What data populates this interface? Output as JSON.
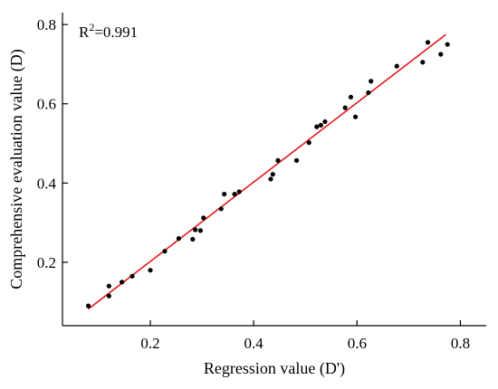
{
  "chart_data": {
    "type": "scatter",
    "title": "",
    "xlabel": "Regression value (D')",
    "ylabel": "Comprehensive  evaluation value (D)",
    "xlim": [
      0.03,
      0.85
    ],
    "ylim": [
      0.04,
      0.83
    ],
    "x_ticks": [
      0.2,
      0.4,
      0.6,
      0.8
    ],
    "y_ticks": [
      0.2,
      0.4,
      0.6,
      0.8
    ],
    "x_tick_labels": [
      "0.2",
      "0.4",
      "0.6",
      "0.8"
    ],
    "y_tick_labels": [
      "0.2",
      "0.4",
      "0.6",
      "0.8"
    ],
    "grid": false,
    "legend": "none",
    "annotation": {
      "prefix": "R",
      "superscript": "2",
      "suffix": "=0.991"
    },
    "series": [
      {
        "marker_color": "#000000",
        "points": [
          {
            "x": 0.08,
            "y": 0.09
          },
          {
            "x": 0.12,
            "y": 0.115
          },
          {
            "x": 0.12,
            "y": 0.14
          },
          {
            "x": 0.145,
            "y": 0.15
          },
          {
            "x": 0.165,
            "y": 0.165
          },
          {
            "x": 0.2,
            "y": 0.18
          },
          {
            "x": 0.228,
            "y": 0.228
          },
          {
            "x": 0.255,
            "y": 0.26
          },
          {
            "x": 0.282,
            "y": 0.258
          },
          {
            "x": 0.287,
            "y": 0.282
          },
          {
            "x": 0.297,
            "y": 0.28
          },
          {
            "x": 0.303,
            "y": 0.312
          },
          {
            "x": 0.337,
            "y": 0.335
          },
          {
            "x": 0.343,
            "y": 0.372
          },
          {
            "x": 0.363,
            "y": 0.372
          },
          {
            "x": 0.372,
            "y": 0.378
          },
          {
            "x": 0.433,
            "y": 0.41
          },
          {
            "x": 0.437,
            "y": 0.422
          },
          {
            "x": 0.447,
            "y": 0.457
          },
          {
            "x": 0.483,
            "y": 0.457
          },
          {
            "x": 0.507,
            "y": 0.502
          },
          {
            "x": 0.522,
            "y": 0.542
          },
          {
            "x": 0.53,
            "y": 0.546
          },
          {
            "x": 0.538,
            "y": 0.555
          },
          {
            "x": 0.577,
            "y": 0.59
          },
          {
            "x": 0.588,
            "y": 0.617
          },
          {
            "x": 0.597,
            "y": 0.567
          },
          {
            "x": 0.622,
            "y": 0.628
          },
          {
            "x": 0.627,
            "y": 0.657
          },
          {
            "x": 0.677,
            "y": 0.695
          },
          {
            "x": 0.727,
            "y": 0.705
          },
          {
            "x": 0.737,
            "y": 0.755
          },
          {
            "x": 0.762,
            "y": 0.725
          },
          {
            "x": 0.775,
            "y": 0.75
          }
        ]
      }
    ],
    "fit_line": {
      "color": "#e8161b",
      "from": {
        "x": 0.08,
        "y": 0.082
      },
      "to": {
        "x": 0.772,
        "y": 0.775
      }
    }
  }
}
